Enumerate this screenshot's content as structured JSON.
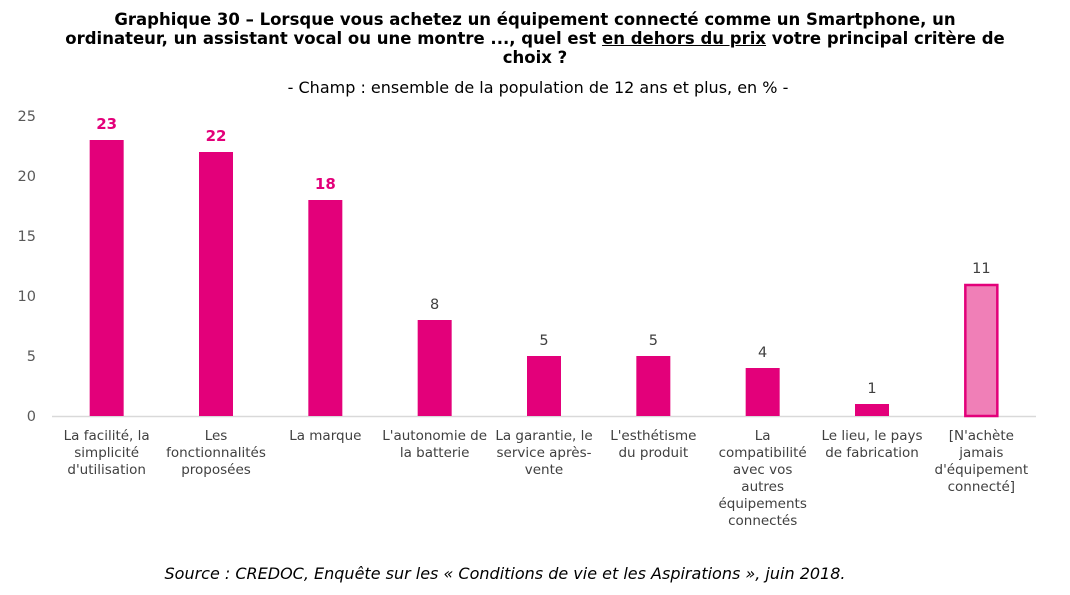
{
  "title": {
    "part1": "Graphique 30 – Lorsque vous achetez un équipement connecté comme un Smartphone, un",
    "part2a": "ordinateur, un assistant vocal ou une montre ..., quel est ",
    "part2_underlined": "en dehors du prix",
    "part2b": " votre principal critère de",
    "part3": "choix ?"
  },
  "subtitle": "- Champ : ensemble de la population de 12 ans et plus, en % -",
  "source": "Source : CREDOC, Enquête sur les « Conditions de vie et les Aspirations », juin 2018.",
  "chart_data": {
    "type": "bar",
    "title": "Graphique 30 – Lorsque vous achetez un équipement connecté comme un Smartphone, un ordinateur, un assistant vocal ou une montre ..., quel est en dehors du prix votre principal critère de choix ?",
    "subtitle": "- Champ : ensemble de la population de 12 ans et plus, en % -",
    "xlabel": "",
    "ylabel": "",
    "ylim": [
      0,
      25
    ],
    "yticks": [
      0,
      5,
      10,
      15,
      20,
      25
    ],
    "grid": false,
    "legend": "none",
    "categories": [
      "La facilité, la simplicité d'utilisation",
      "Les fonctionnalités proposées",
      "La marque",
      "L'autonomie de la batterie",
      "La garantie, le service après-vente",
      "L'esthétisme du produit",
      "La compatibilité avec vos autres équipements connectés",
      "Le lieu, le pays de fabrication",
      "[N'achète jamais d'équipement connecté]"
    ],
    "category_lines": [
      [
        "La facilité, la",
        "simplicité",
        "d'utilisation"
      ],
      [
        "Les",
        "fonctionnalités",
        "proposées"
      ],
      [
        "La marque"
      ],
      [
        "L'autonomie de",
        "la batterie"
      ],
      [
        "La garantie, le",
        "service après-",
        "vente"
      ],
      [
        "L'esthétisme",
        "du produit"
      ],
      [
        "La",
        "compatibilité",
        "avec vos",
        "autres",
        "équipements",
        "connectés"
      ],
      [
        "Le lieu, le pays",
        "de fabrication"
      ],
      [
        "[N'achète",
        "jamais",
        "d'équipement",
        "connecté]"
      ]
    ],
    "values": [
      23,
      22,
      18,
      8,
      5,
      5,
      4,
      1,
      11
    ],
    "labels": [
      "23",
      "22",
      "18",
      "8",
      "5",
      "5",
      "4",
      "1",
      "11"
    ],
    "label_bold": [
      true,
      true,
      true,
      false,
      false,
      false,
      false,
      false,
      false
    ],
    "bar_style": [
      "main",
      "main",
      "main",
      "main",
      "main",
      "main",
      "main",
      "main",
      "light"
    ],
    "colors": {
      "main": "#e3007a",
      "light": "#f07fb7",
      "light_border": "#e3007a",
      "label_bold": "#e3007a",
      "label": "#404040",
      "axis": "#d9d9d9",
      "tick": "#595959"
    }
  }
}
